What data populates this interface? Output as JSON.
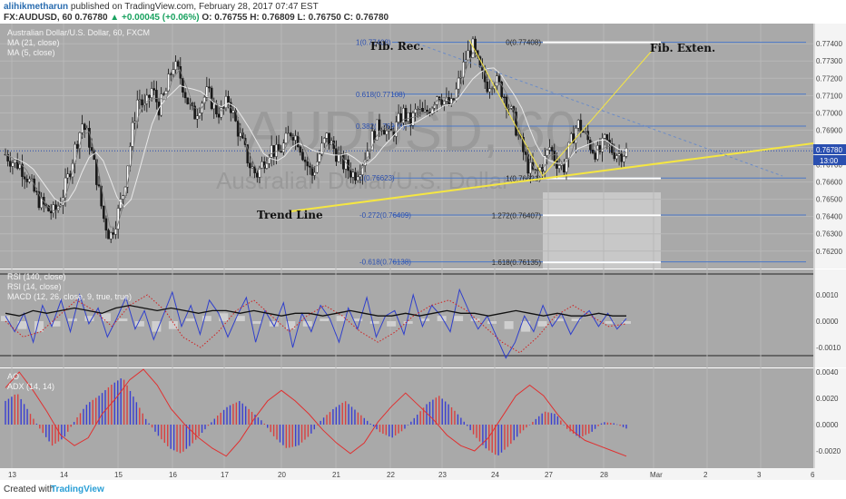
{
  "header": {
    "author": "alihikmetharun",
    "published": "published on TradingView.com, February 28, 2017 07:47 EST",
    "symbol": "FX:AUDUSD, 60",
    "last": "0.76780",
    "change": "▲ +0.00045 (+0.06%)",
    "ohlc": "O: 0.76755 H: 0.76809 L: 0.76750 C: 0.76780"
  },
  "footer": {
    "created_with": "Created with",
    "logo": "TradingView"
  },
  "chart_data": {
    "type": "line",
    "legend": {
      "main": "Australian Dollar/U.S. Dollar, 60, FXCM",
      "ma21": "MA (21, close)",
      "ma5": "MA (5, close)",
      "rsi140": "RSI (140, close)",
      "rsi14": "RSI (14, close)",
      "macd": "MACD (12, 26, close, 9, true, true)",
      "ao": "AO",
      "adx": "ADX (14, 14)"
    },
    "watermark": {
      "symbol": "AUDUSD, 60",
      "name": "Australian Dollar/U.S. Dollar"
    },
    "x_labels": [
      "13",
      "14",
      "15",
      "16",
      "17",
      "20",
      "21",
      "22",
      "23",
      "24",
      "27",
      "28",
      "Mar",
      "2",
      "3",
      "6"
    ],
    "price_axis": {
      "ticks": [
        "0.77400",
        "0.77300",
        "0.77200",
        "0.77100",
        "0.77000",
        "0.76900",
        "0.76800",
        "0.76700",
        "0.76600",
        "0.76500",
        "0.76400",
        "0.76300",
        "0.76200"
      ],
      "last_price": "0.76780",
      "countdown": "13:00",
      "range": [
        0.7612,
        0.7748
      ]
    },
    "macd_axis": {
      "ticks": [
        "0.0010",
        "0.0000",
        "-0.0010"
      ]
    },
    "ao_axis": {
      "ticks": [
        "0.0040",
        "0.0020",
        "0.0000",
        "-0.0020"
      ]
    },
    "fib_retracement": [
      {
        "label": "1(0.77408)",
        "price": 0.77408
      },
      {
        "label": "0.618(0.77108)",
        "price": 0.77108
      },
      {
        "label": "0.382(0.76923)",
        "price": 0.76923
      },
      {
        "label": "0(0.76623)",
        "price": 0.76623
      },
      {
        "label": "-0.272(0.76409)",
        "price": 0.76409
      },
      {
        "label": "-0.618(0.76138)",
        "price": 0.76138
      }
    ],
    "fib_extension": [
      {
        "label": "0(0.77408)",
        "price": 0.77408
      },
      {
        "label": "1(0.76621)",
        "price": 0.76621
      },
      {
        "label": "1.272(0.76407)",
        "price": 0.76407
      },
      {
        "label": "1.618(0.76135)",
        "price": 0.76135
      }
    ],
    "annotations": {
      "fib_rec": "Fib. Rec.",
      "fib_exten": "Fib. Exten.",
      "trend_line": "Trend Line"
    },
    "price_series": [
      0.7676,
      0.7672,
      0.767,
      0.7664,
      0.7655,
      0.7648,
      0.7644,
      0.7642,
      0.765,
      0.7663,
      0.768,
      0.7694,
      0.7684,
      0.7664,
      0.764,
      0.7628,
      0.764,
      0.7656,
      0.7685,
      0.771,
      0.7702,
      0.7714,
      0.7703,
      0.7712,
      0.7728,
      0.7722,
      0.7708,
      0.7698,
      0.7706,
      0.7712,
      0.7702,
      0.77,
      0.7708,
      0.7694,
      0.7682,
      0.767,
      0.7664,
      0.7672,
      0.768,
      0.7676,
      0.7682,
      0.769,
      0.7684,
      0.7672,
      0.7664,
      0.7676,
      0.7686,
      0.768,
      0.7672,
      0.7668,
      0.7664,
      0.767,
      0.768,
      0.769,
      0.7694,
      0.7686,
      0.7692,
      0.77,
      0.7694,
      0.7702,
      0.7698,
      0.7704,
      0.7712,
      0.7706,
      0.7704,
      0.7718,
      0.7732,
      0.7738,
      0.7724,
      0.7716,
      0.772,
      0.7714,
      0.7706,
      0.7694,
      0.768,
      0.7668,
      0.7664,
      0.767,
      0.768,
      0.7672,
      0.7668,
      0.7682,
      0.7694,
      0.7688,
      0.768,
      0.7676,
      0.7684,
      0.7678,
      0.7676,
      0.7678
    ],
    "rsi14": [
      0.0002,
      -0.0004,
      0.0003,
      -0.0008,
      0.0006,
      -0.0002,
      0.0008,
      -0.0004,
      0.001,
      -0.0001,
      0.0005,
      -0.0006,
      0.0001,
      0.0009,
      -0.0003,
      0.0004,
      -0.0007,
      0.0002,
      0.0011,
      -0.0002,
      0.0006,
      -0.0005,
      0.0008,
      0.0003,
      -0.0006,
      0.0002,
      0.0009,
      -0.0008,
      0.0004,
      -0.0002,
      0.0007,
      -0.001,
      0.0003,
      -0.0004,
      0.0006,
      0.0001,
      -0.0008,
      0.0005,
      -0.0003,
      0.0009,
      -0.0006,
      0.0002,
      0.0004,
      -0.0005,
      0.001,
      -0.0002,
      0.0006,
      0.0002,
      -0.0004,
      0.0012,
      0.0004,
      -0.0003,
      0.0002,
      -0.0006,
      -0.0014,
      -0.0008,
      0.0002,
      -0.0004,
      0.0006,
      -0.0002,
      0.0003,
      -0.0005,
      0.0001,
      0.0004,
      -0.0002,
      0.0003,
      -0.0003,
      0.0001
    ],
    "rsi140": [
      0.0003,
      0.0002,
      0.0004,
      0.0003,
      0.0004,
      0.0005,
      0.0004,
      0.0003,
      0.0005,
      0.0006,
      0.0005,
      0.0004,
      0.0005,
      0.0004,
      0.0003,
      0.0004,
      0.0004,
      0.0003,
      0.0004,
      0.0003,
      0.0002,
      0.0003,
      0.0003,
      0.0002,
      0.0003,
      0.0004,
      0.0003,
      0.0002,
      0.0002,
      0.0003,
      0.0002,
      0.0003,
      0.0004,
      0.0003,
      0.0003,
      0.0002,
      0.0003,
      0.0004,
      0.0003,
      0.0002,
      0.0003,
      0.0002,
      0.0002,
      0.0003,
      0.0002,
      0.0002
    ],
    "macd_line": [
      0.0,
      -0.0006,
      -0.0004,
      0.0002,
      0.0008,
      0.0004,
      -0.0002,
      0.0006,
      0.001,
      0.0004,
      -0.0006,
      -0.001,
      -0.0004,
      0.0004,
      0.0008,
      0.0002,
      -0.0004,
      0.0002,
      0.0006,
      0.0002,
      -0.0004,
      -0.0008,
      -0.0004,
      0.0002,
      0.0006,
      0.0008,
      0.0004,
      -0.0002,
      -0.0008,
      -0.0012,
      -0.0006,
      0.0002,
      0.0006,
      0.0002,
      -0.0002,
      -0.0001
    ],
    "macd_hist": [
      0.0002,
      -0.0003,
      -0.0004,
      -0.0002,
      0.0001,
      0.0002,
      0.0003,
      0.0001,
      -0.0002,
      -0.0004,
      -0.0003,
      0.0001,
      0.0002,
      0.0003,
      0.0002,
      -0.0001,
      -0.0002,
      -0.0003,
      -0.0002,
      0.0001,
      0.0002,
      0.0001,
      -0.0001,
      -0.0002,
      -0.0001,
      0.0001,
      0.0002,
      0.0002,
      0.0001,
      -0.0001,
      -0.0003,
      -0.0004,
      -0.0002,
      0.0001,
      0.0001,
      0.0,
      -0.0001,
      -0.0001
    ],
    "ao_hist": [
      0.0018,
      0.0024,
      0.001,
      -0.0004,
      -0.0016,
      -0.001,
      0.0004,
      0.0016,
      0.0022,
      0.003,
      0.0036,
      0.002,
      0.0004,
      -0.0008,
      -0.0018,
      -0.0022,
      -0.0014,
      -0.0004,
      0.0006,
      0.0014,
      0.0018,
      0.001,
      0.0002,
      -0.001,
      -0.0018,
      -0.0016,
      -0.0008,
      0.0004,
      0.0012,
      0.0018,
      0.001,
      0.0002,
      -0.0006,
      -0.001,
      -0.0004,
      0.0006,
      0.0016,
      0.0022,
      0.0014,
      0.0004,
      -0.0008,
      -0.0018,
      -0.0024,
      -0.0016,
      -0.0006,
      0.0002,
      0.001,
      0.0008,
      -0.0004,
      -0.001,
      -0.0006,
      0.0002,
      0.0001,
      -0.0003
    ],
    "adx": [
      0.0028,
      0.004,
      0.0026,
      0.001,
      -0.0008,
      -0.0016,
      -0.001,
      0.0008,
      0.002,
      0.0034,
      0.0042,
      0.003,
      0.0012,
      0.0,
      -0.001,
      -0.0018,
      -0.0024,
      -0.0012,
      0.0004,
      0.0018,
      0.0026,
      0.0018,
      0.0008,
      -0.0004,
      -0.0014,
      -0.0022,
      -0.0014,
      0.0002,
      0.0014,
      0.0024,
      0.0014,
      0.0004,
      -0.0008,
      -0.0016,
      -0.002,
      -0.001,
      0.0006,
      0.0022,
      0.003,
      0.0022,
      0.0008,
      -0.0004,
      -0.0012,
      -0.0016,
      -0.002,
      -0.0024
    ]
  }
}
